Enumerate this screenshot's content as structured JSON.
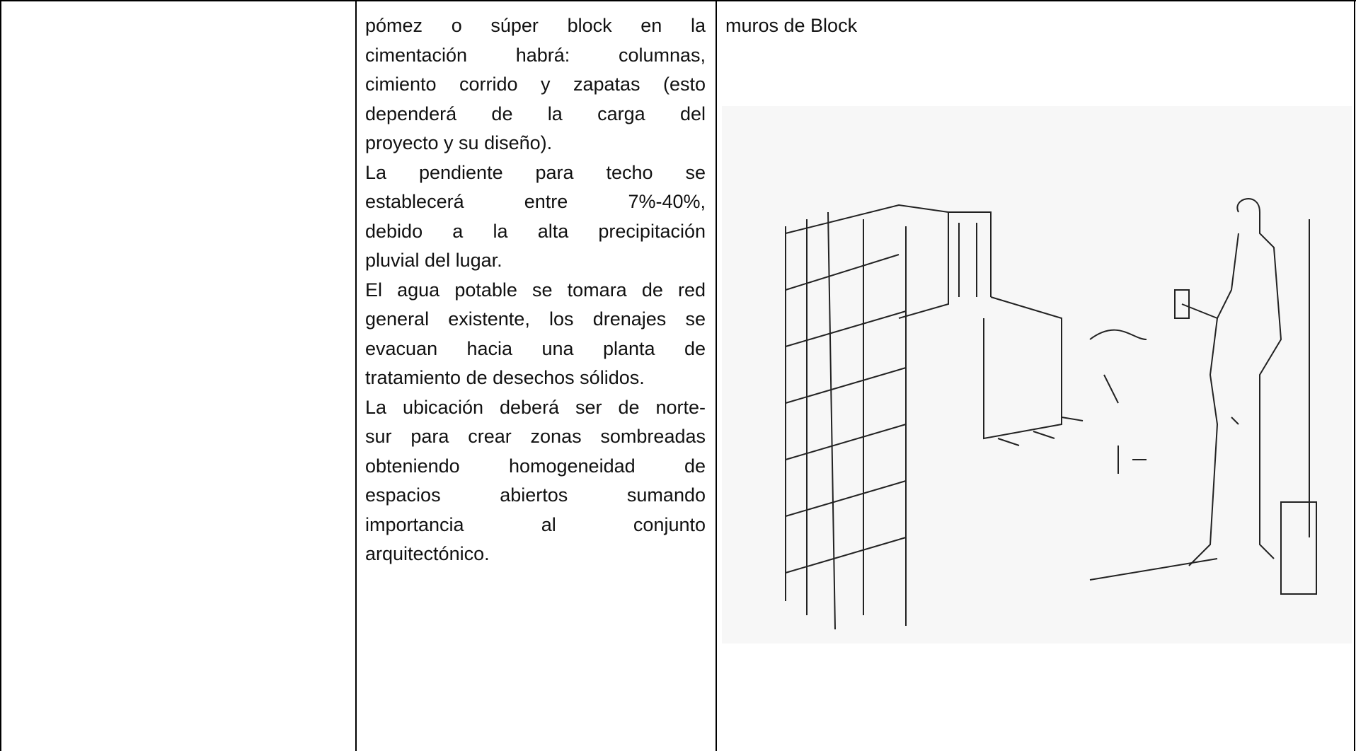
{
  "table": {
    "middle_cell": {
      "paragraphs": [
        [
          "pómez o súper block en la",
          "cimentación habrá: columnas,",
          "cimiento corrido y zapatas (esto",
          "dependerá de la carga del",
          "proyecto y su diseño)."
        ],
        [
          "La pendiente para techo se",
          "establecerá entre 7%-40%,",
          "debido a la alta precipitación",
          "pluvial del lugar."
        ],
        [
          "El agua potable se tomara de red",
          "general existente, los drenajes se",
          "evacuan hacia una planta de",
          "tratamiento de desechos sólidos."
        ],
        [
          "La ubicación deberá ser de norte-",
          "sur para crear zonas sombreadas",
          "obteniendo homogeneidad de",
          "espacios abiertos sumando",
          "importancia al conjunto",
          "arquitectónico."
        ]
      ]
    },
    "right_cell": {
      "caption": "muros de Block"
    }
  }
}
